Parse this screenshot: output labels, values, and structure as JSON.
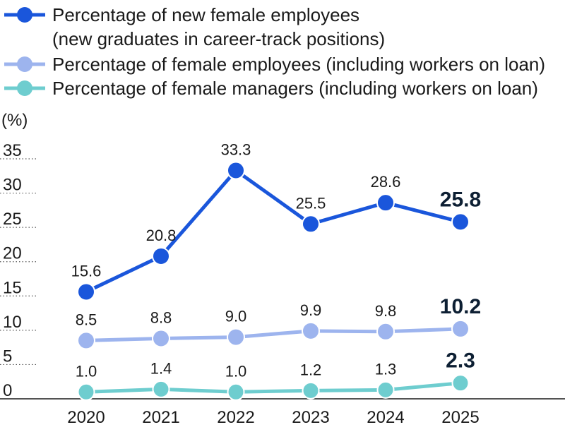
{
  "colors": {
    "new_female": "#1a56db",
    "female_employees": "#9db4ee",
    "female_managers": "#6ecdcf",
    "axis": "#1a1a1a",
    "grid": "#555555"
  },
  "legend": [
    {
      "series": 0,
      "lines": [
        "Percentage of new female employees",
        "(new graduates in career-track positions)"
      ]
    },
    {
      "series": 1,
      "lines": [
        "Percentage of female employees (including workers on loan)"
      ]
    },
    {
      "series": 2,
      "lines": [
        "Percentage of female managers (including workers on loan)"
      ]
    }
  ],
  "chart_data": {
    "type": "line",
    "ylabel": "(%)",
    "ylim": [
      0,
      35
    ],
    "yticks": [
      "0",
      "5",
      "10",
      "15",
      "20",
      "25",
      "30",
      "35"
    ],
    "x": [
      "2020",
      "2021",
      "2022",
      "2023",
      "2024",
      "2025"
    ],
    "grid": "dotted horizontal",
    "legend_position": "top-left",
    "series": [
      {
        "name": "Percentage of new female employees (new graduates in career-track positions)",
        "values": [
          15.6,
          20.8,
          33.3,
          25.5,
          28.6,
          25.8
        ],
        "labels": [
          "15.6",
          "20.8",
          "33.3",
          "25.5",
          "28.6",
          "25.8"
        ],
        "color": "#1a56db"
      },
      {
        "name": "Percentage of female employees (including workers on loan)",
        "values": [
          8.5,
          8.8,
          9.0,
          9.9,
          9.8,
          10.2
        ],
        "labels": [
          "8.5",
          "8.8",
          "9.0",
          "9.9",
          "9.8",
          "10.2"
        ],
        "color": "#9db4ee"
      },
      {
        "name": "Percentage of female managers (including workers on loan)",
        "values": [
          1.0,
          1.4,
          1.0,
          1.2,
          1.3,
          2.3
        ],
        "labels": [
          "1.0",
          "1.4",
          "1.0",
          "1.2",
          "1.3",
          "2.3"
        ],
        "color": "#6ecdcf"
      }
    ]
  }
}
